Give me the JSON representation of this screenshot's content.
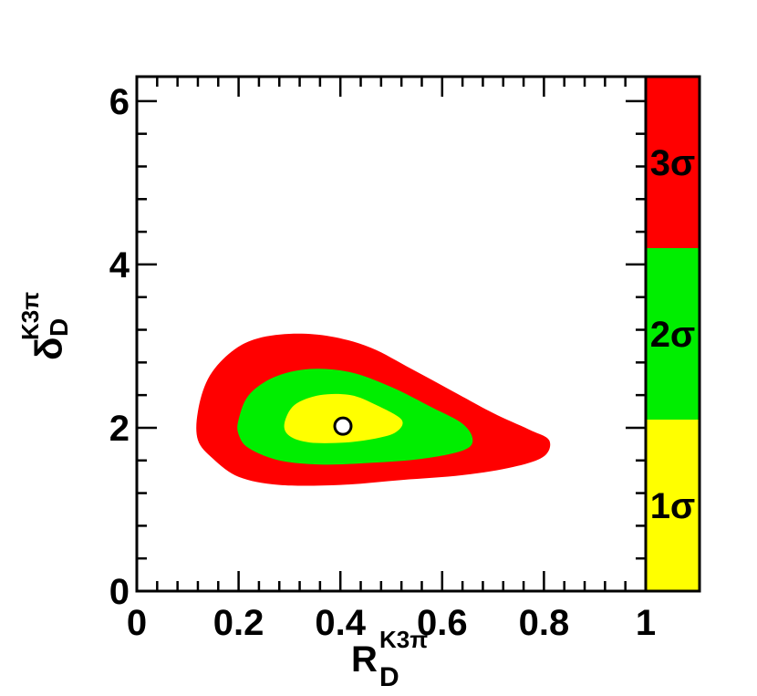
{
  "chart_data": {
    "type": "contour",
    "xlabel": {
      "main": "R",
      "sub": "D",
      "sup": "K3π"
    },
    "ylabel": {
      "main": "δ",
      "sub": "D",
      "sup": "K3π"
    },
    "xlim": [
      0,
      1
    ],
    "ylim": [
      0,
      6.3
    ],
    "x_ticks": [
      "0",
      "0.2",
      "0.4",
      "0.6",
      "0.8",
      "1"
    ],
    "x_tick_values": [
      0,
      0.2,
      0.4,
      0.6,
      0.8,
      1.0
    ],
    "y_ticks": [
      "0",
      "2",
      "4",
      "6"
    ],
    "y_tick_values": [
      0,
      2,
      4,
      6
    ],
    "grid": false,
    "best_fit": {
      "x": 0.405,
      "y": 2.02
    },
    "regions": [
      {
        "name": "3σ",
        "color": "#ff0000",
        "outline": [
          [
            0.12,
            2.2
          ],
          [
            0.14,
            2.6
          ],
          [
            0.18,
            2.9
          ],
          [
            0.23,
            3.08
          ],
          [
            0.3,
            3.15
          ],
          [
            0.38,
            3.12
          ],
          [
            0.46,
            2.98
          ],
          [
            0.54,
            2.72
          ],
          [
            0.62,
            2.45
          ],
          [
            0.7,
            2.18
          ],
          [
            0.77,
            1.98
          ],
          [
            0.81,
            1.85
          ],
          [
            0.8,
            1.65
          ],
          [
            0.74,
            1.52
          ],
          [
            0.64,
            1.42
          ],
          [
            0.52,
            1.36
          ],
          [
            0.4,
            1.3
          ],
          [
            0.28,
            1.3
          ],
          [
            0.2,
            1.4
          ],
          [
            0.15,
            1.62
          ],
          [
            0.12,
            1.85
          ]
        ]
      },
      {
        "name": "2σ",
        "color": "#00ee00",
        "outline": [
          [
            0.2,
            2.1
          ],
          [
            0.22,
            2.4
          ],
          [
            0.27,
            2.62
          ],
          [
            0.34,
            2.72
          ],
          [
            0.42,
            2.68
          ],
          [
            0.5,
            2.5
          ],
          [
            0.58,
            2.25
          ],
          [
            0.64,
            2.05
          ],
          [
            0.66,
            1.85
          ],
          [
            0.64,
            1.72
          ],
          [
            0.56,
            1.62
          ],
          [
            0.46,
            1.57
          ],
          [
            0.36,
            1.55
          ],
          [
            0.28,
            1.6
          ],
          [
            0.22,
            1.75
          ],
          [
            0.2,
            1.92
          ]
        ]
      },
      {
        "name": "1σ",
        "color": "#ffff00",
        "outline": [
          [
            0.29,
            2.05
          ],
          [
            0.31,
            2.28
          ],
          [
            0.36,
            2.4
          ],
          [
            0.42,
            2.4
          ],
          [
            0.47,
            2.28
          ],
          [
            0.52,
            2.1
          ],
          [
            0.51,
            1.95
          ],
          [
            0.47,
            1.87
          ],
          [
            0.41,
            1.82
          ],
          [
            0.34,
            1.82
          ],
          [
            0.3,
            1.9
          ]
        ]
      }
    ],
    "color_scale": [
      {
        "label": "3σ",
        "color": "#ff0000"
      },
      {
        "label": "2σ",
        "color": "#00ee00"
      },
      {
        "label": "1σ",
        "color": "#ffff00"
      }
    ]
  }
}
